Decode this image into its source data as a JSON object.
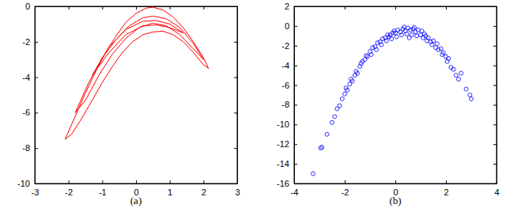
{
  "chart_data": [
    {
      "type": "line",
      "title": "(a)",
      "xlim": [
        -3,
        3
      ],
      "xticks": [
        -3,
        -2,
        -1,
        0,
        1,
        2,
        3
      ],
      "ylim": [
        -10,
        0
      ],
      "yticks": [
        -10,
        -8,
        -6,
        -4,
        -2,
        0
      ],
      "series": [
        {
          "color": "#ff0000",
          "line_style": "solid",
          "x": [
            -2.1,
            -1.8,
            -1.5,
            -1.2,
            -0.9,
            -0.6,
            -0.3,
            0,
            0.3,
            0.5,
            0.8,
            1.1,
            1.4,
            1.7,
            2.0,
            2.15,
            2.0,
            1.7,
            1.4,
            1.1,
            0.8,
            0.5,
            0.2,
            -0.1,
            -0.4,
            -0.7,
            -1.0,
            -1.3,
            -1.6,
            -1.9,
            -2.1
          ],
          "values": [
            -7.5,
            -6.2,
            -4.9,
            -3.7,
            -2.6,
            -1.7,
            -0.9,
            -0.4,
            -0.1,
            -0.05,
            -0.2,
            -0.6,
            -1.2,
            -2.0,
            -2.9,
            -3.5,
            -3.3,
            -2.6,
            -2.0,
            -1.6,
            -1.4,
            -1.45,
            -1.6,
            -2.0,
            -2.6,
            -3.4,
            -4.3,
            -5.3,
            -6.3,
            -7.2,
            -7.5
          ]
        },
        {
          "color": "#ff0000",
          "line_style": "solid",
          "x": [
            -1.8,
            -1.4,
            -1.0,
            -0.6,
            -0.2,
            0.2,
            0.5,
            0.9,
            1.3,
            1.7,
            2.0,
            1.7,
            1.3,
            0.9,
            0.5,
            0.1,
            -0.3,
            -0.7,
            -1.1,
            -1.5,
            -1.8
          ],
          "values": [
            -6.0,
            -4.3,
            -2.9,
            -1.9,
            -1.1,
            -0.65,
            -0.55,
            -0.7,
            -1.2,
            -2.1,
            -3.0,
            -2.4,
            -1.6,
            -1.1,
            -0.95,
            -1.2,
            -1.8,
            -2.7,
            -3.9,
            -5.3,
            -6.0
          ]
        },
        {
          "color": "#ff0000",
          "line_style": "solid",
          "x": [
            -1.3,
            -0.8,
            -0.3,
            0.2,
            0.6,
            1.0,
            1.4,
            1.0,
            0.6,
            0.2,
            -0.3,
            -0.8,
            -1.3
          ],
          "values": [
            -3.9,
            -2.3,
            -1.3,
            -0.85,
            -0.8,
            -1.0,
            -1.5,
            -1.2,
            -1.05,
            -1.1,
            -1.6,
            -2.6,
            -3.9
          ]
        }
      ]
    },
    {
      "type": "scatter",
      "title": "(b)",
      "xlim": [
        -4,
        4
      ],
      "xticks": [
        -4,
        -2,
        0,
        2,
        4
      ],
      "ylim": [
        -16,
        2
      ],
      "yticks": [
        -16,
        -14,
        -12,
        -10,
        -8,
        -6,
        -4,
        -2,
        0,
        2
      ],
      "x": [
        -3.25,
        -2.95,
        -2.9,
        -2.7,
        -2.5,
        -2.4,
        -2.3,
        -2.2,
        -2.1,
        -2.0,
        -1.95,
        -1.9,
        -1.8,
        -1.75,
        -1.7,
        -1.6,
        -1.55,
        -1.5,
        -1.4,
        -1.35,
        -1.3,
        -1.2,
        -1.15,
        -1.1,
        -1.0,
        -0.95,
        -0.9,
        -0.8,
        -0.75,
        -0.7,
        -0.6,
        -0.55,
        -0.5,
        -0.4,
        -0.35,
        -0.3,
        -0.25,
        -0.2,
        -0.15,
        -0.1,
        -0.05,
        0.0,
        0.05,
        0.1,
        0.2,
        0.25,
        0.3,
        0.35,
        0.4,
        0.45,
        0.5,
        0.55,
        0.6,
        0.65,
        0.7,
        0.75,
        0.8,
        0.85,
        0.9,
        1.0,
        1.05,
        1.1,
        1.15,
        1.2,
        1.25,
        1.3,
        1.4,
        1.45,
        1.5,
        1.6,
        1.65,
        1.7,
        1.8,
        1.85,
        1.9,
        2.0,
        2.05,
        2.1,
        2.2,
        2.3,
        2.4,
        2.5,
        2.6,
        2.8,
        2.95,
        3.0
      ],
      "series": [
        {
          "color": "#0000ff",
          "marker": "circle",
          "values": [
            -15.0,
            -12.4,
            -12.3,
            -11.0,
            -9.8,
            -9.2,
            -8.4,
            -8.1,
            -7.4,
            -6.9,
            -6.3,
            -6.5,
            -5.9,
            -5.4,
            -5.6,
            -5.0,
            -4.6,
            -4.8,
            -4.1,
            -3.8,
            -3.6,
            -3.4,
            -3.0,
            -3.1,
            -2.6,
            -2.9,
            -2.2,
            -2.1,
            -2.4,
            -1.7,
            -1.6,
            -1.9,
            -1.3,
            -1.2,
            -1.5,
            -0.9,
            -1.1,
            -0.9,
            -1.3,
            -0.7,
            -0.5,
            -0.7,
            -1.1,
            -0.4,
            -0.6,
            -0.9,
            -0.3,
            -0.1,
            -0.5,
            -0.8,
            -0.2,
            -1.2,
            -0.4,
            -0.9,
            -0.3,
            -0.15,
            -0.6,
            -1.0,
            -0.4,
            -0.9,
            -0.5,
            -1.2,
            -0.8,
            -1.0,
            -1.5,
            -1.2,
            -1.6,
            -1.9,
            -1.5,
            -2.2,
            -1.8,
            -2.4,
            -2.3,
            -2.9,
            -2.7,
            -3.1,
            -3.6,
            -3.3,
            -4.2,
            -4.4,
            -5.0,
            -5.4,
            -4.8,
            -6.4,
            -7.0,
            -7.4
          ]
        }
      ]
    }
  ]
}
